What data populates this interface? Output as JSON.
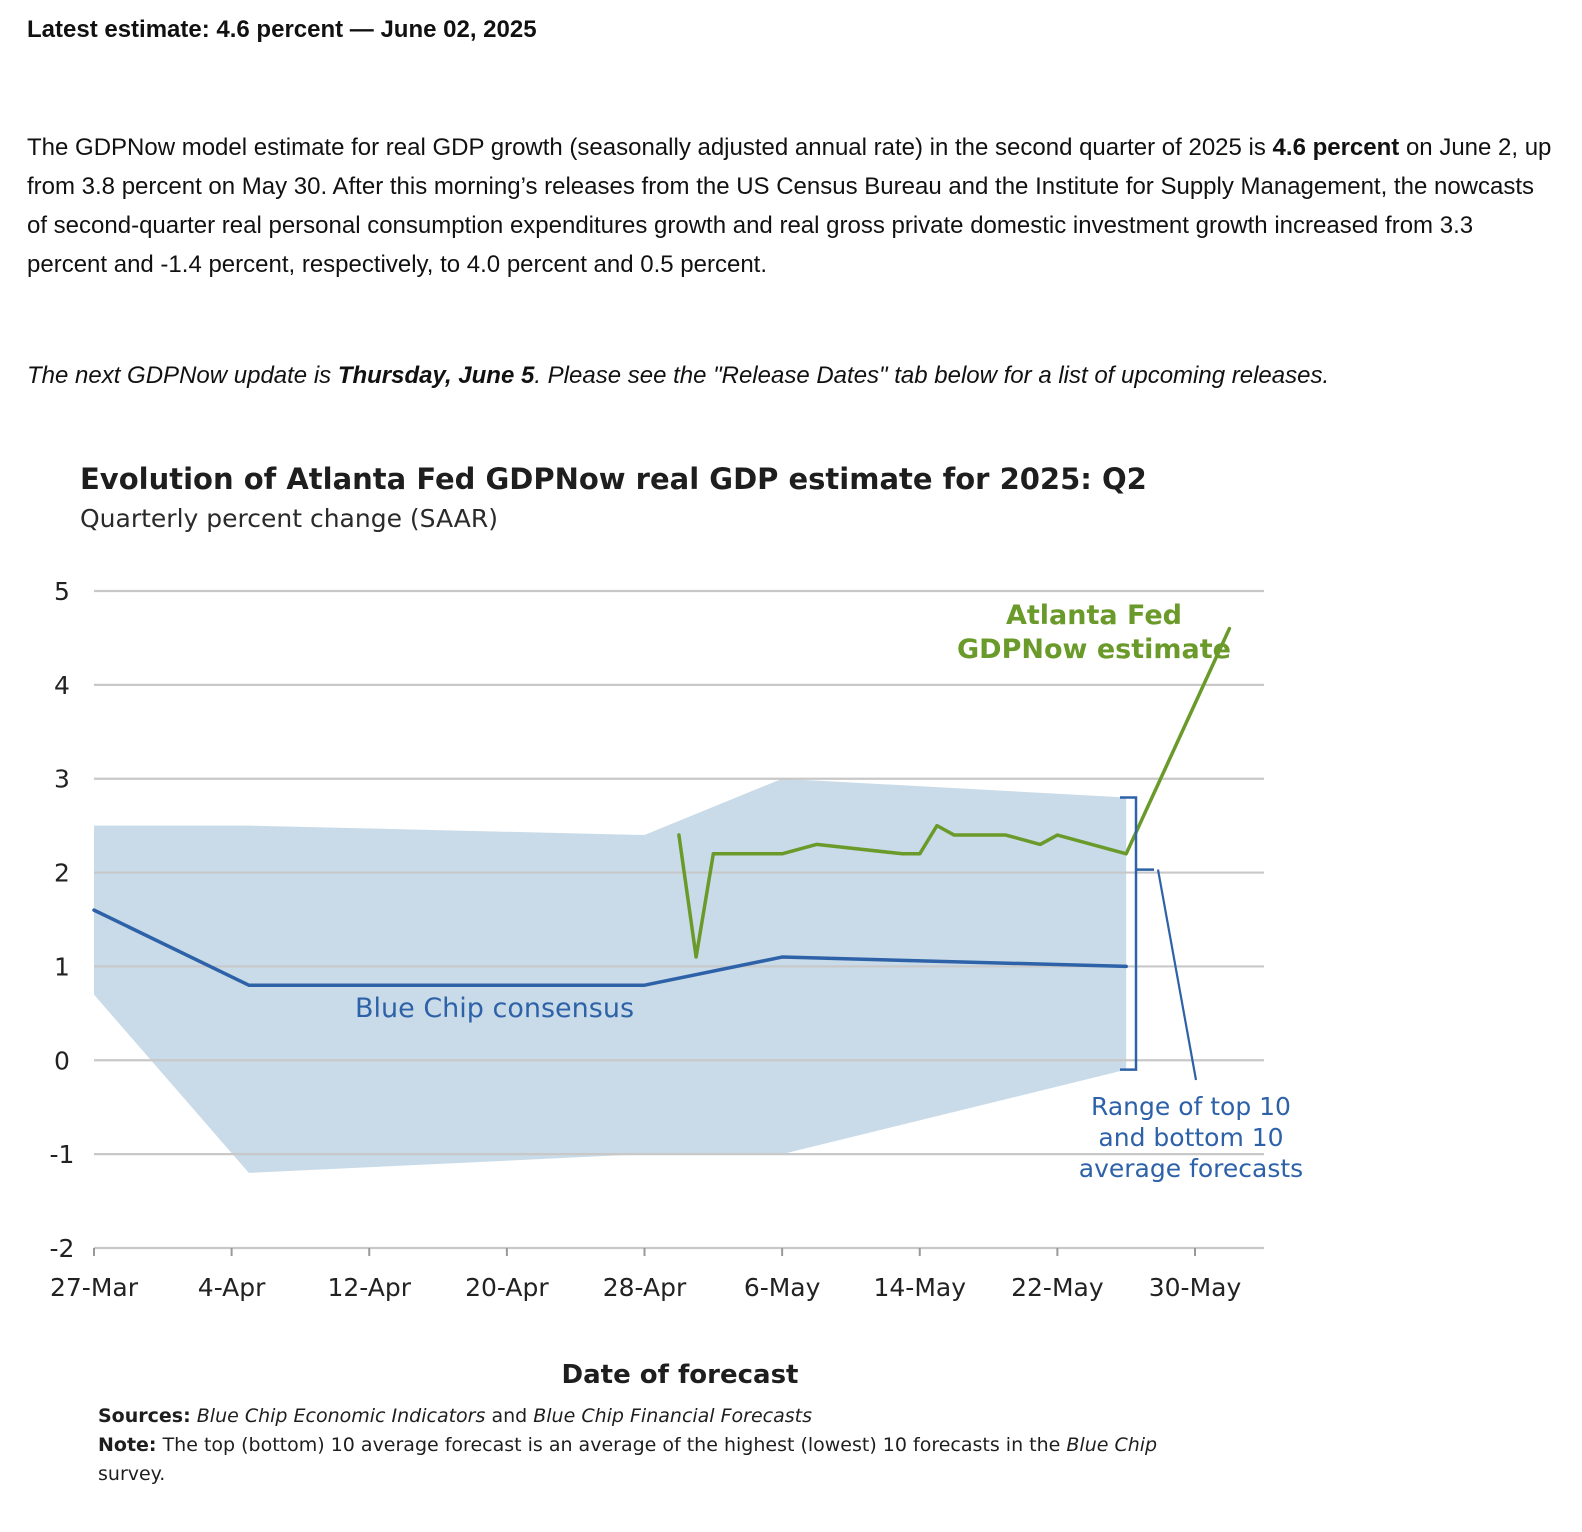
{
  "headline": "Latest estimate: 4.6 percent — June 02, 2025",
  "paragraph": {
    "before": "The GDPNow model estimate for real GDP growth (seasonally adjusted annual rate) in the second quarter of 2025 is ",
    "bold": "4.6 percent",
    "after": " on June 2, up from 3.8 percent on May 30. After this morning’s releases from the US Census Bureau and the Institute for Supply Management, the nowcasts of second-quarter real personal consumption expenditures growth and real gross private domestic investment growth increased from 3.3 percent and -1.4 percent, respectively, to 4.0 percent and 0.5 percent."
  },
  "next_update": {
    "before": "The next GDPNow update is ",
    "bold": "Thursday, June 5",
    "after": ". Please see the \"Release Dates\" tab below for a list of upcoming releases."
  },
  "chart_data": {
    "type": "line",
    "title": "Evolution of Atlanta Fed GDPNow real GDP estimate for 2025: Q2",
    "subtitle": "Quarterly percent change (SAAR)",
    "xlabel": "Date of forecast",
    "ylabel": "",
    "ylim": [
      -2,
      5
    ],
    "yticks": [
      "5",
      "4",
      "3",
      "2",
      "1",
      "0",
      "-1",
      "-2"
    ],
    "xlim": [
      0,
      66
    ],
    "x_ticks": [
      {
        "label": "27-Mar",
        "day": 0
      },
      {
        "label": "4-Apr",
        "day": 8
      },
      {
        "label": "12-Apr",
        "day": 16
      },
      {
        "label": "20-Apr",
        "day": 24
      },
      {
        "label": "28-Apr",
        "day": 32
      },
      {
        "label": "6-May",
        "day": 40
      },
      {
        "label": "14-May",
        "day": 48
      },
      {
        "label": "22-May",
        "day": 56
      },
      {
        "label": "30-May",
        "day": 64
      }
    ],
    "x_unit_note": "x values are days since 27-Mar",
    "series": [
      {
        "name": "Atlanta Fed GDPNow estimate",
        "label_lines": [
          "Atlanta Fed",
          "GDPNow estimate"
        ],
        "color": "#6a9a2a",
        "x": [
          34,
          35,
          36,
          40,
          42,
          47,
          48,
          49,
          50,
          53,
          55,
          56,
          58,
          60,
          62,
          64,
          66
        ],
        "y": [
          2.4,
          1.1,
          2.2,
          2.2,
          2.3,
          2.2,
          2.2,
          2.5,
          2.4,
          2.4,
          2.3,
          2.4,
          2.3,
          2.2,
          3.0,
          3.8,
          4.6
        ]
      },
      {
        "name": "Blue Chip consensus",
        "color": "#2e62a8",
        "x": [
          0,
          9,
          32,
          40,
          60
        ],
        "y": [
          1.6,
          0.8,
          0.8,
          1.1,
          1.0
        ]
      }
    ],
    "band": {
      "name": "Range of top 10 and bottom 10 average forecasts",
      "label_lines": [
        "Range of top 10",
        "and bottom 10",
        "average forecasts"
      ],
      "color": "#c9dbe8",
      "x": [
        0,
        9,
        32,
        40,
        60
      ],
      "upper": [
        2.5,
        2.5,
        2.4,
        3.0,
        2.8
      ],
      "lower": [
        0.7,
        -1.2,
        -1.0,
        -1.0,
        -0.1
      ]
    },
    "sources": {
      "label": "Sources:",
      "text1": "Blue Chip Economic Indicators",
      "and": " and ",
      "text2": "Blue Chip Financial Forecasts"
    },
    "note": {
      "label": "Note:",
      "text": " The top (bottom) 10 average forecast is an average of the highest (lowest) 10 forecasts in the ",
      "italic": "Blue Chip",
      "end": " survey."
    }
  }
}
